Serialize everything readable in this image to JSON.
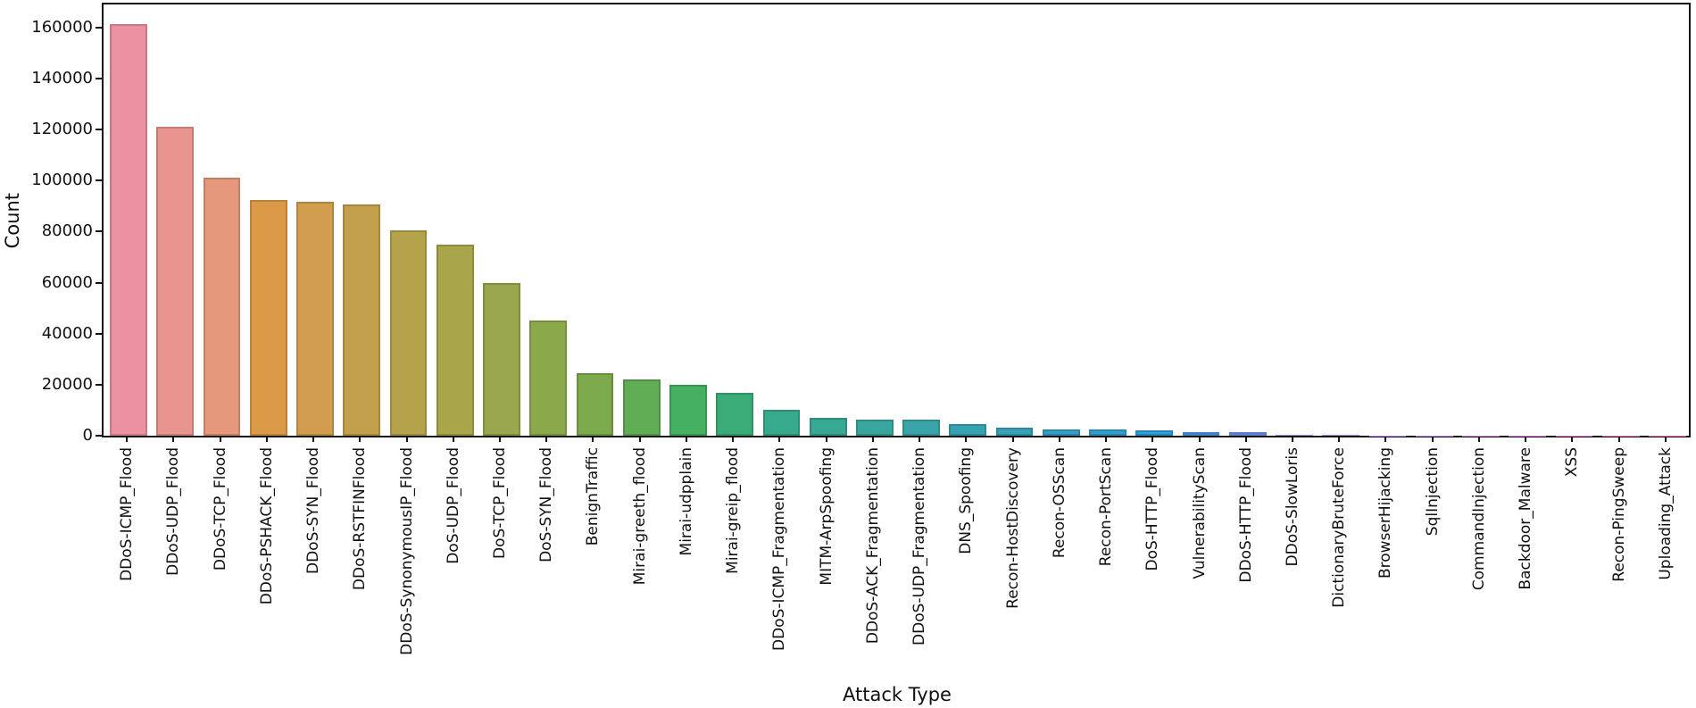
{
  "figure": {
    "background": "#ffffff",
    "spine_color": "#141414",
    "text_color": "#111111"
  },
  "chart_data": {
    "type": "bar",
    "title": "",
    "xlabel": "Attack Type",
    "ylabel": "Count",
    "grid": false,
    "legend": false,
    "ylim": [
      0,
      169000
    ],
    "yticks": [
      0,
      20000,
      40000,
      60000,
      80000,
      100000,
      120000,
      140000,
      160000
    ],
    "categories": [
      "DDoS-ICMP_Flood",
      "DDoS-UDP_Flood",
      "DDoS-TCP_Flood",
      "DDoS-PSHACK_Flood",
      "DDoS-SYN_Flood",
      "DDoS-RSTFINFlood",
      "DDoS-SynonymousIP_Flood",
      "DoS-UDP_Flood",
      "DoS-TCP_Flood",
      "DoS-SYN_Flood",
      "BenignTraffic",
      "Mirai-greeth_flood",
      "Mirai-udpplain",
      "Mirai-greip_flood",
      "DDoS-ICMP_Fragmentation",
      "MITM-ArpSpoofing",
      "DDoS-ACK_Fragmentation",
      "DDoS-UDP_Fragmentation",
      "DNS_Spoofing",
      "Recon-HostDiscovery",
      "Recon-OSScan",
      "Recon-PortScan",
      "DoS-HTTP_Flood",
      "VulnerabilityScan",
      "DDoS-HTTP_Flood",
      "DDoS-SlowLoris",
      "DictionaryBruteForce",
      "BrowserHijacking",
      "SqlInjection",
      "CommandInjection",
      "Backdoor_Malware",
      "XSS",
      "Recon-PingSweep",
      "Uploading_Attack"
    ],
    "values": [
      161300,
      121200,
      101300,
      92400,
      91600,
      90800,
      80600,
      74900,
      59800,
      45300,
      24600,
      22100,
      20100,
      16900,
      10100,
      7100,
      6450,
      6430,
      4400,
      3300,
      2600,
      2300,
      2150,
      1400,
      700,
      520,
      310,
      150,
      120,
      110,
      80,
      75,
      50,
      30
    ],
    "bar_colors": [
      "#ec919f",
      "#e9948c",
      "#e5987b",
      "#dc9a49",
      "#d19d4e",
      "#c3a04b",
      "#b5a34c",
      "#a9a54a",
      "#9aa74c",
      "#8ba94b",
      "#7caa4c",
      "#61ad56",
      "#45b061",
      "#3bac77",
      "#37a98c",
      "#38a794",
      "#39a69e",
      "#3aa5a9",
      "#37a3b2",
      "#35a2ba",
      "#34a0c3",
      "#339fce",
      "#309fdd",
      "#4f9be9",
      "#6f97ef",
      "#8c92f2",
      "#a38cf4",
      "#b787f3",
      "#c97ef2",
      "#d977ef",
      "#e771e8",
      "#ee6cdc",
      "#f36acb",
      "#f567b8"
    ]
  }
}
